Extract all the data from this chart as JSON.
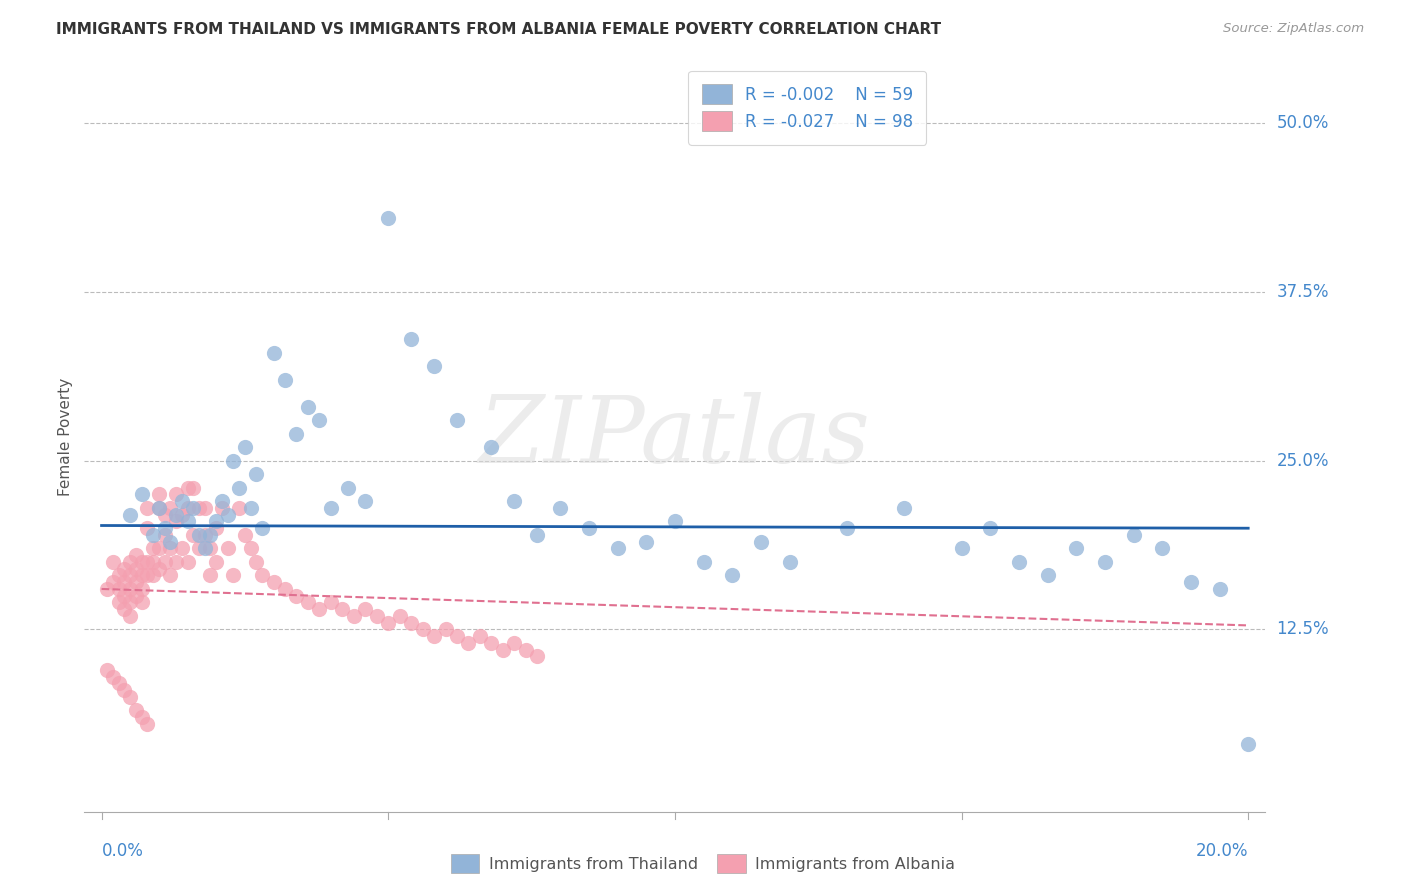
{
  "title": "IMMIGRANTS FROM THAILAND VS IMMIGRANTS FROM ALBANIA FEMALE POVERTY CORRELATION CHART",
  "source": "Source: ZipAtlas.com",
  "ylabel": "Female Poverty",
  "ytick_labels": [
    "50.0%",
    "37.5%",
    "25.0%",
    "12.5%"
  ],
  "ytick_values": [
    0.5,
    0.375,
    0.25,
    0.125
  ],
  "xlim": [
    0.0,
    0.2
  ],
  "ylim": [
    0.0,
    0.54
  ],
  "legend_blue_r": "-0.002",
  "legend_blue_n": "59",
  "legend_pink_r": "-0.027",
  "legend_pink_n": "98",
  "color_blue": "#92B4D8",
  "color_pink": "#F4A0B0",
  "color_blue_line": "#1E5FA8",
  "color_pink_line": "#E07090",
  "watermark_text": "ZIPatlas",
  "blue_trend_y0": 0.202,
  "blue_trend_y1": 0.2,
  "pink_trend_y0": 0.155,
  "pink_trend_y1": 0.128,
  "thailand_x": [
    0.005,
    0.007,
    0.009,
    0.01,
    0.011,
    0.012,
    0.013,
    0.014,
    0.015,
    0.016,
    0.017,
    0.018,
    0.019,
    0.02,
    0.021,
    0.022,
    0.023,
    0.024,
    0.025,
    0.026,
    0.027,
    0.028,
    0.03,
    0.032,
    0.034,
    0.036,
    0.038,
    0.04,
    0.043,
    0.046,
    0.05,
    0.054,
    0.058,
    0.062,
    0.068,
    0.072,
    0.076,
    0.08,
    0.085,
    0.09,
    0.095,
    0.1,
    0.105,
    0.11,
    0.115,
    0.12,
    0.13,
    0.14,
    0.15,
    0.155,
    0.16,
    0.165,
    0.17,
    0.175,
    0.18,
    0.185,
    0.19,
    0.195,
    0.2
  ],
  "thailand_y": [
    0.21,
    0.225,
    0.195,
    0.215,
    0.2,
    0.19,
    0.21,
    0.22,
    0.205,
    0.215,
    0.195,
    0.185,
    0.195,
    0.205,
    0.22,
    0.21,
    0.25,
    0.23,
    0.26,
    0.215,
    0.24,
    0.2,
    0.33,
    0.31,
    0.27,
    0.29,
    0.28,
    0.215,
    0.23,
    0.22,
    0.43,
    0.34,
    0.32,
    0.28,
    0.26,
    0.22,
    0.195,
    0.215,
    0.2,
    0.185,
    0.19,
    0.205,
    0.175,
    0.165,
    0.19,
    0.175,
    0.2,
    0.215,
    0.185,
    0.2,
    0.175,
    0.165,
    0.185,
    0.175,
    0.195,
    0.185,
    0.16,
    0.155,
    0.04
  ],
  "albania_x": [
    0.001,
    0.002,
    0.002,
    0.003,
    0.003,
    0.003,
    0.004,
    0.004,
    0.004,
    0.004,
    0.005,
    0.005,
    0.005,
    0.005,
    0.005,
    0.006,
    0.006,
    0.006,
    0.006,
    0.007,
    0.007,
    0.007,
    0.007,
    0.008,
    0.008,
    0.008,
    0.008,
    0.009,
    0.009,
    0.009,
    0.01,
    0.01,
    0.01,
    0.01,
    0.011,
    0.011,
    0.011,
    0.012,
    0.012,
    0.012,
    0.013,
    0.013,
    0.013,
    0.014,
    0.014,
    0.015,
    0.015,
    0.015,
    0.016,
    0.016,
    0.017,
    0.017,
    0.018,
    0.018,
    0.019,
    0.019,
    0.02,
    0.02,
    0.021,
    0.022,
    0.023,
    0.024,
    0.025,
    0.026,
    0.027,
    0.028,
    0.03,
    0.032,
    0.034,
    0.036,
    0.038,
    0.04,
    0.042,
    0.044,
    0.046,
    0.048,
    0.05,
    0.052,
    0.054,
    0.056,
    0.058,
    0.06,
    0.062,
    0.064,
    0.066,
    0.068,
    0.07,
    0.072,
    0.074,
    0.076,
    0.001,
    0.002,
    0.003,
    0.004,
    0.005,
    0.006,
    0.007,
    0.008
  ],
  "albania_y": [
    0.155,
    0.16,
    0.175,
    0.165,
    0.155,
    0.145,
    0.17,
    0.16,
    0.15,
    0.14,
    0.175,
    0.165,
    0.155,
    0.145,
    0.135,
    0.18,
    0.17,
    0.16,
    0.15,
    0.175,
    0.165,
    0.155,
    0.145,
    0.175,
    0.2,
    0.215,
    0.165,
    0.185,
    0.175,
    0.165,
    0.225,
    0.215,
    0.185,
    0.17,
    0.21,
    0.195,
    0.175,
    0.215,
    0.185,
    0.165,
    0.225,
    0.205,
    0.175,
    0.21,
    0.185,
    0.23,
    0.215,
    0.175,
    0.23,
    0.195,
    0.215,
    0.185,
    0.215,
    0.195,
    0.185,
    0.165,
    0.2,
    0.175,
    0.215,
    0.185,
    0.165,
    0.215,
    0.195,
    0.185,
    0.175,
    0.165,
    0.16,
    0.155,
    0.15,
    0.145,
    0.14,
    0.145,
    0.14,
    0.135,
    0.14,
    0.135,
    0.13,
    0.135,
    0.13,
    0.125,
    0.12,
    0.125,
    0.12,
    0.115,
    0.12,
    0.115,
    0.11,
    0.115,
    0.11,
    0.105,
    0.095,
    0.09,
    0.085,
    0.08,
    0.075,
    0.065,
    0.06,
    0.055
  ]
}
